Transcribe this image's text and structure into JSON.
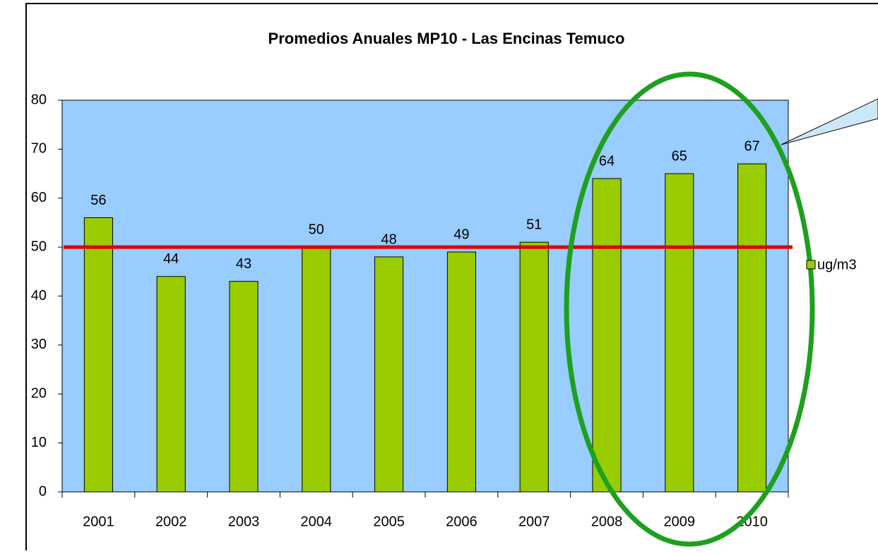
{
  "chart_data": {
    "type": "bar",
    "title": "Promedios Anuales MP10 - Las Encinas Temuco",
    "categories": [
      "2001",
      "2002",
      "2003",
      "2004",
      "2005",
      "2006",
      "2007",
      "2008",
      "2009",
      "2010"
    ],
    "series": [
      {
        "name": "ug/m3",
        "color": "#99cc00",
        "values": [
          56,
          44,
          43,
          50,
          48,
          49,
          51,
          64,
          65,
          67
        ]
      }
    ],
    "ylim": [
      0,
      80
    ],
    "yticks": [
      0,
      10,
      20,
      30,
      40,
      50,
      60,
      70,
      80
    ],
    "reference_line": {
      "value": 50,
      "color": "#e00000"
    },
    "plot_background": "#99ccff",
    "legend": "right"
  }
}
